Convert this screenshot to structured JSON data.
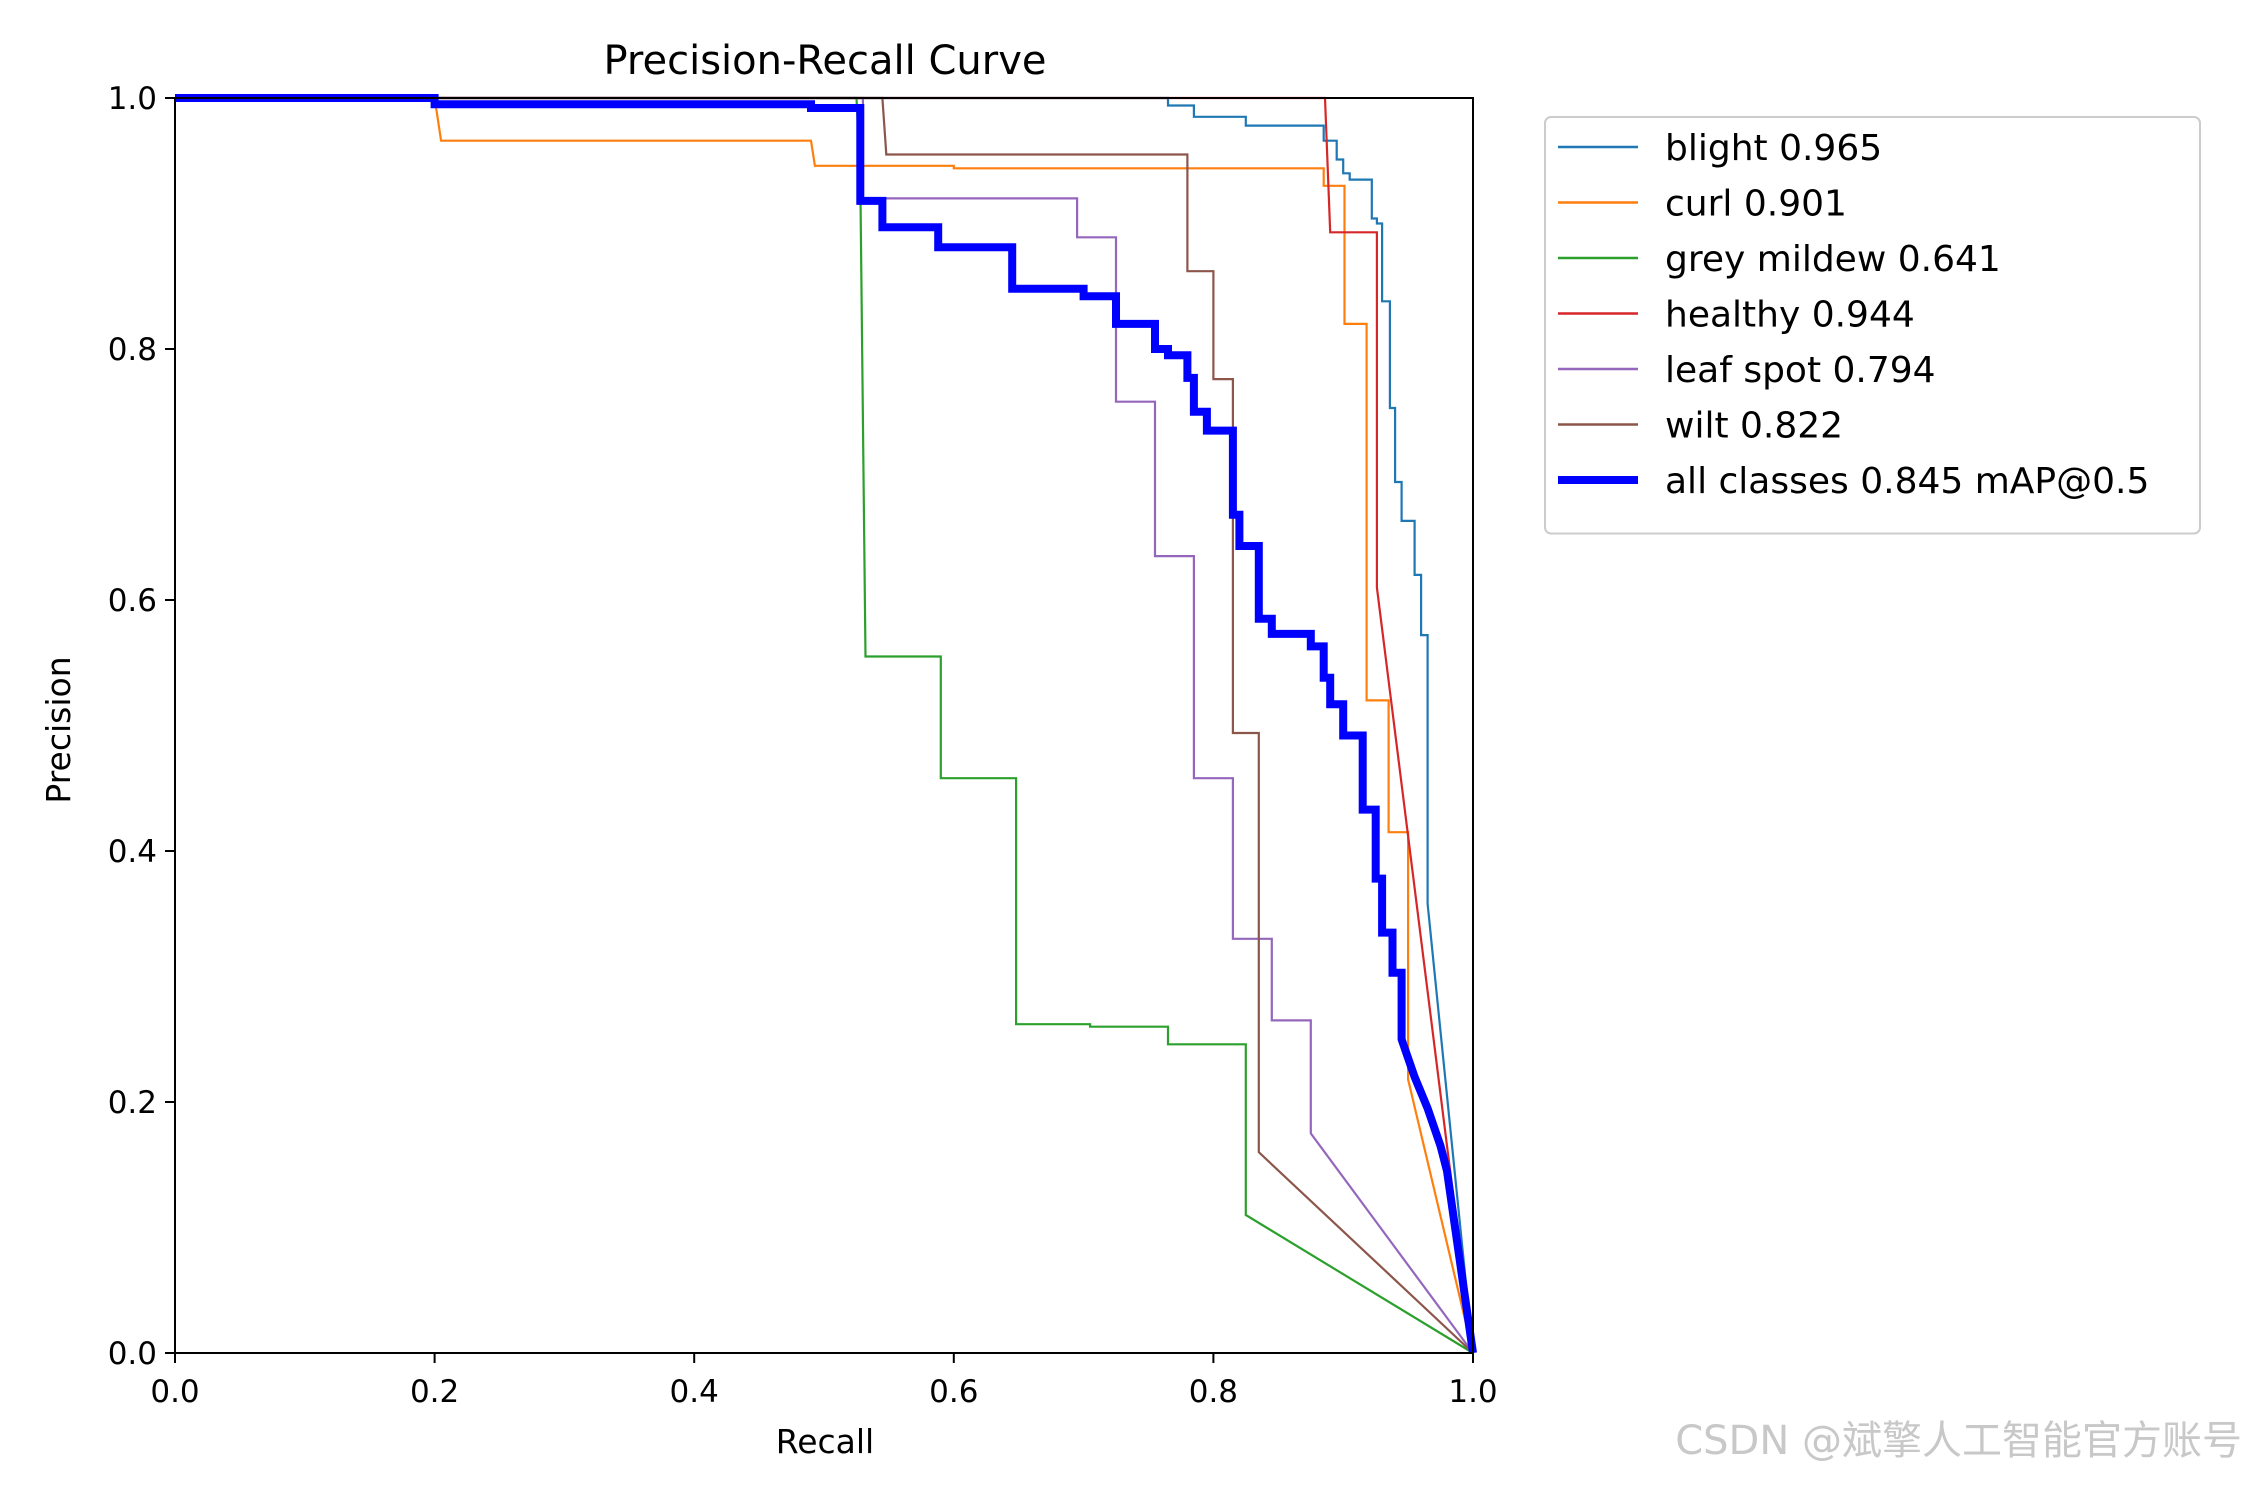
{
  "chart_data": {
    "type": "line",
    "title": "Precision-Recall Curve",
    "xlabel": "Recall",
    "ylabel": "Precision",
    "xlim": [
      0,
      1
    ],
    "ylim": [
      0,
      1
    ],
    "xticks": [
      "0.0",
      "0.2",
      "0.4",
      "0.6",
      "0.8",
      "1.0"
    ],
    "yticks": [
      "0.0",
      "0.2",
      "0.4",
      "0.6",
      "0.8",
      "1.0"
    ],
    "legend_position": "outside-top-right",
    "series": [
      {
        "name": "blight 0.965",
        "color": "#1f77b4",
        "emphasis": false,
        "points": [
          [
            0,
            1
          ],
          [
            0.765,
            1
          ],
          [
            0.765,
            0.994
          ],
          [
            0.785,
            0.994
          ],
          [
            0.785,
            0.985
          ],
          [
            0.825,
            0.985
          ],
          [
            0.825,
            0.978
          ],
          [
            0.885,
            0.978
          ],
          [
            0.885,
            0.966
          ],
          [
            0.895,
            0.966
          ],
          [
            0.895,
            0.951
          ],
          [
            0.9,
            0.951
          ],
          [
            0.9,
            0.94
          ],
          [
            0.905,
            0.94
          ],
          [
            0.905,
            0.935
          ],
          [
            0.922,
            0.935
          ],
          [
            0.922,
            0.904
          ],
          [
            0.926,
            0.904
          ],
          [
            0.926,
            0.9
          ],
          [
            0.93,
            0.9
          ],
          [
            0.93,
            0.838
          ],
          [
            0.936,
            0.838
          ],
          [
            0.936,
            0.753
          ],
          [
            0.94,
            0.753
          ],
          [
            0.94,
            0.694
          ],
          [
            0.945,
            0.694
          ],
          [
            0.945,
            0.663
          ],
          [
            0.955,
            0.663
          ],
          [
            0.955,
            0.62
          ],
          [
            0.96,
            0.62
          ],
          [
            0.96,
            0.572
          ],
          [
            0.965,
            0.572
          ],
          [
            0.965,
            0.358
          ],
          [
            1.0,
            0.0
          ]
        ]
      },
      {
        "name": "curl 0.901",
        "color": "#ff7f0e",
        "emphasis": false,
        "points": [
          [
            0,
            1
          ],
          [
            0.2,
            1
          ],
          [
            0.205,
            0.966
          ],
          [
            0.49,
            0.966
          ],
          [
            0.493,
            0.946
          ],
          [
            0.6,
            0.946
          ],
          [
            0.6,
            0.944
          ],
          [
            0.885,
            0.944
          ],
          [
            0.885,
            0.93
          ],
          [
            0.901,
            0.93
          ],
          [
            0.901,
            0.82
          ],
          [
            0.918,
            0.82
          ],
          [
            0.918,
            0.52
          ],
          [
            0.935,
            0.52
          ],
          [
            0.935,
            0.415
          ],
          [
            0.95,
            0.415
          ],
          [
            0.95,
            0.218
          ],
          [
            1.0,
            0.0
          ]
        ]
      },
      {
        "name": "grey mildew 0.641",
        "color": "#2ca02c",
        "emphasis": false,
        "points": [
          [
            0,
            1
          ],
          [
            0.525,
            1
          ],
          [
            0.528,
            0.935
          ],
          [
            0.532,
            0.555
          ],
          [
            0.59,
            0.555
          ],
          [
            0.59,
            0.458
          ],
          [
            0.648,
            0.458
          ],
          [
            0.648,
            0.262
          ],
          [
            0.705,
            0.262
          ],
          [
            0.705,
            0.26
          ],
          [
            0.765,
            0.26
          ],
          [
            0.765,
            0.246
          ],
          [
            0.825,
            0.246
          ],
          [
            0.825,
            0.11
          ],
          [
            1.0,
            0.0
          ]
        ]
      },
      {
        "name": "healthy 0.944",
        "color": "#d62728",
        "emphasis": false,
        "points": [
          [
            0,
            1
          ],
          [
            0.886,
            1
          ],
          [
            0.89,
            0.893
          ],
          [
            0.926,
            0.893
          ],
          [
            0.926,
            0.61
          ],
          [
            1.0,
            0.0
          ]
        ]
      },
      {
        "name": "leaf spot 0.794",
        "color": "#9467bd",
        "emphasis": false,
        "points": [
          [
            0,
            1
          ],
          [
            0.53,
            1
          ],
          [
            0.53,
            0.92
          ],
          [
            0.695,
            0.92
          ],
          [
            0.695,
            0.889
          ],
          [
            0.725,
            0.889
          ],
          [
            0.725,
            0.758
          ],
          [
            0.755,
            0.758
          ],
          [
            0.755,
            0.635
          ],
          [
            0.785,
            0.635
          ],
          [
            0.785,
            0.458
          ],
          [
            0.815,
            0.458
          ],
          [
            0.815,
            0.33
          ],
          [
            0.845,
            0.33
          ],
          [
            0.845,
            0.265
          ],
          [
            0.875,
            0.265
          ],
          [
            0.875,
            0.175
          ],
          [
            1.0,
            0.0
          ]
        ]
      },
      {
        "name": "wilt 0.822",
        "color": "#8c564b",
        "emphasis": false,
        "points": [
          [
            0,
            1
          ],
          [
            0.545,
            1
          ],
          [
            0.548,
            0.955
          ],
          [
            0.78,
            0.955
          ],
          [
            0.78,
            0.862
          ],
          [
            0.8,
            0.862
          ],
          [
            0.8,
            0.776
          ],
          [
            0.815,
            0.776
          ],
          [
            0.815,
            0.494
          ],
          [
            0.835,
            0.494
          ],
          [
            0.835,
            0.16
          ],
          [
            1.0,
            0.0
          ]
        ]
      },
      {
        "name": "all classes 0.845 mAP@0.5",
        "color": "#0000ff",
        "emphasis": true,
        "points": [
          [
            0,
            1
          ],
          [
            0.2,
            1
          ],
          [
            0.2,
            0.995
          ],
          [
            0.49,
            0.995
          ],
          [
            0.49,
            0.992
          ],
          [
            0.528,
            0.992
          ],
          [
            0.528,
            0.918
          ],
          [
            0.545,
            0.918
          ],
          [
            0.545,
            0.897
          ],
          [
            0.588,
            0.897
          ],
          [
            0.588,
            0.881
          ],
          [
            0.645,
            0.881
          ],
          [
            0.645,
            0.848
          ],
          [
            0.7,
            0.848
          ],
          [
            0.7,
            0.842
          ],
          [
            0.725,
            0.842
          ],
          [
            0.725,
            0.82
          ],
          [
            0.755,
            0.82
          ],
          [
            0.755,
            0.8
          ],
          [
            0.765,
            0.8
          ],
          [
            0.765,
            0.795
          ],
          [
            0.78,
            0.795
          ],
          [
            0.78,
            0.777
          ],
          [
            0.785,
            0.777
          ],
          [
            0.785,
            0.75
          ],
          [
            0.795,
            0.75
          ],
          [
            0.795,
            0.735
          ],
          [
            0.815,
            0.735
          ],
          [
            0.815,
            0.668
          ],
          [
            0.82,
            0.668
          ],
          [
            0.82,
            0.643
          ],
          [
            0.835,
            0.643
          ],
          [
            0.835,
            0.585
          ],
          [
            0.845,
            0.585
          ],
          [
            0.845,
            0.573
          ],
          [
            0.875,
            0.573
          ],
          [
            0.875,
            0.563
          ],
          [
            0.885,
            0.563
          ],
          [
            0.885,
            0.538
          ],
          [
            0.89,
            0.538
          ],
          [
            0.89,
            0.517
          ],
          [
            0.9,
            0.517
          ],
          [
            0.9,
            0.492
          ],
          [
            0.915,
            0.492
          ],
          [
            0.915,
            0.433
          ],
          [
            0.925,
            0.433
          ],
          [
            0.925,
            0.378
          ],
          [
            0.93,
            0.378
          ],
          [
            0.93,
            0.335
          ],
          [
            0.938,
            0.335
          ],
          [
            0.938,
            0.303
          ],
          [
            0.945,
            0.303
          ],
          [
            0.945,
            0.25
          ],
          [
            0.955,
            0.22
          ],
          [
            0.965,
            0.195
          ],
          [
            0.975,
            0.165
          ],
          [
            0.98,
            0.145
          ],
          [
            1.0,
            0.0
          ]
        ]
      }
    ]
  },
  "watermark": "CSDN @斌擎人工智能官方账号"
}
